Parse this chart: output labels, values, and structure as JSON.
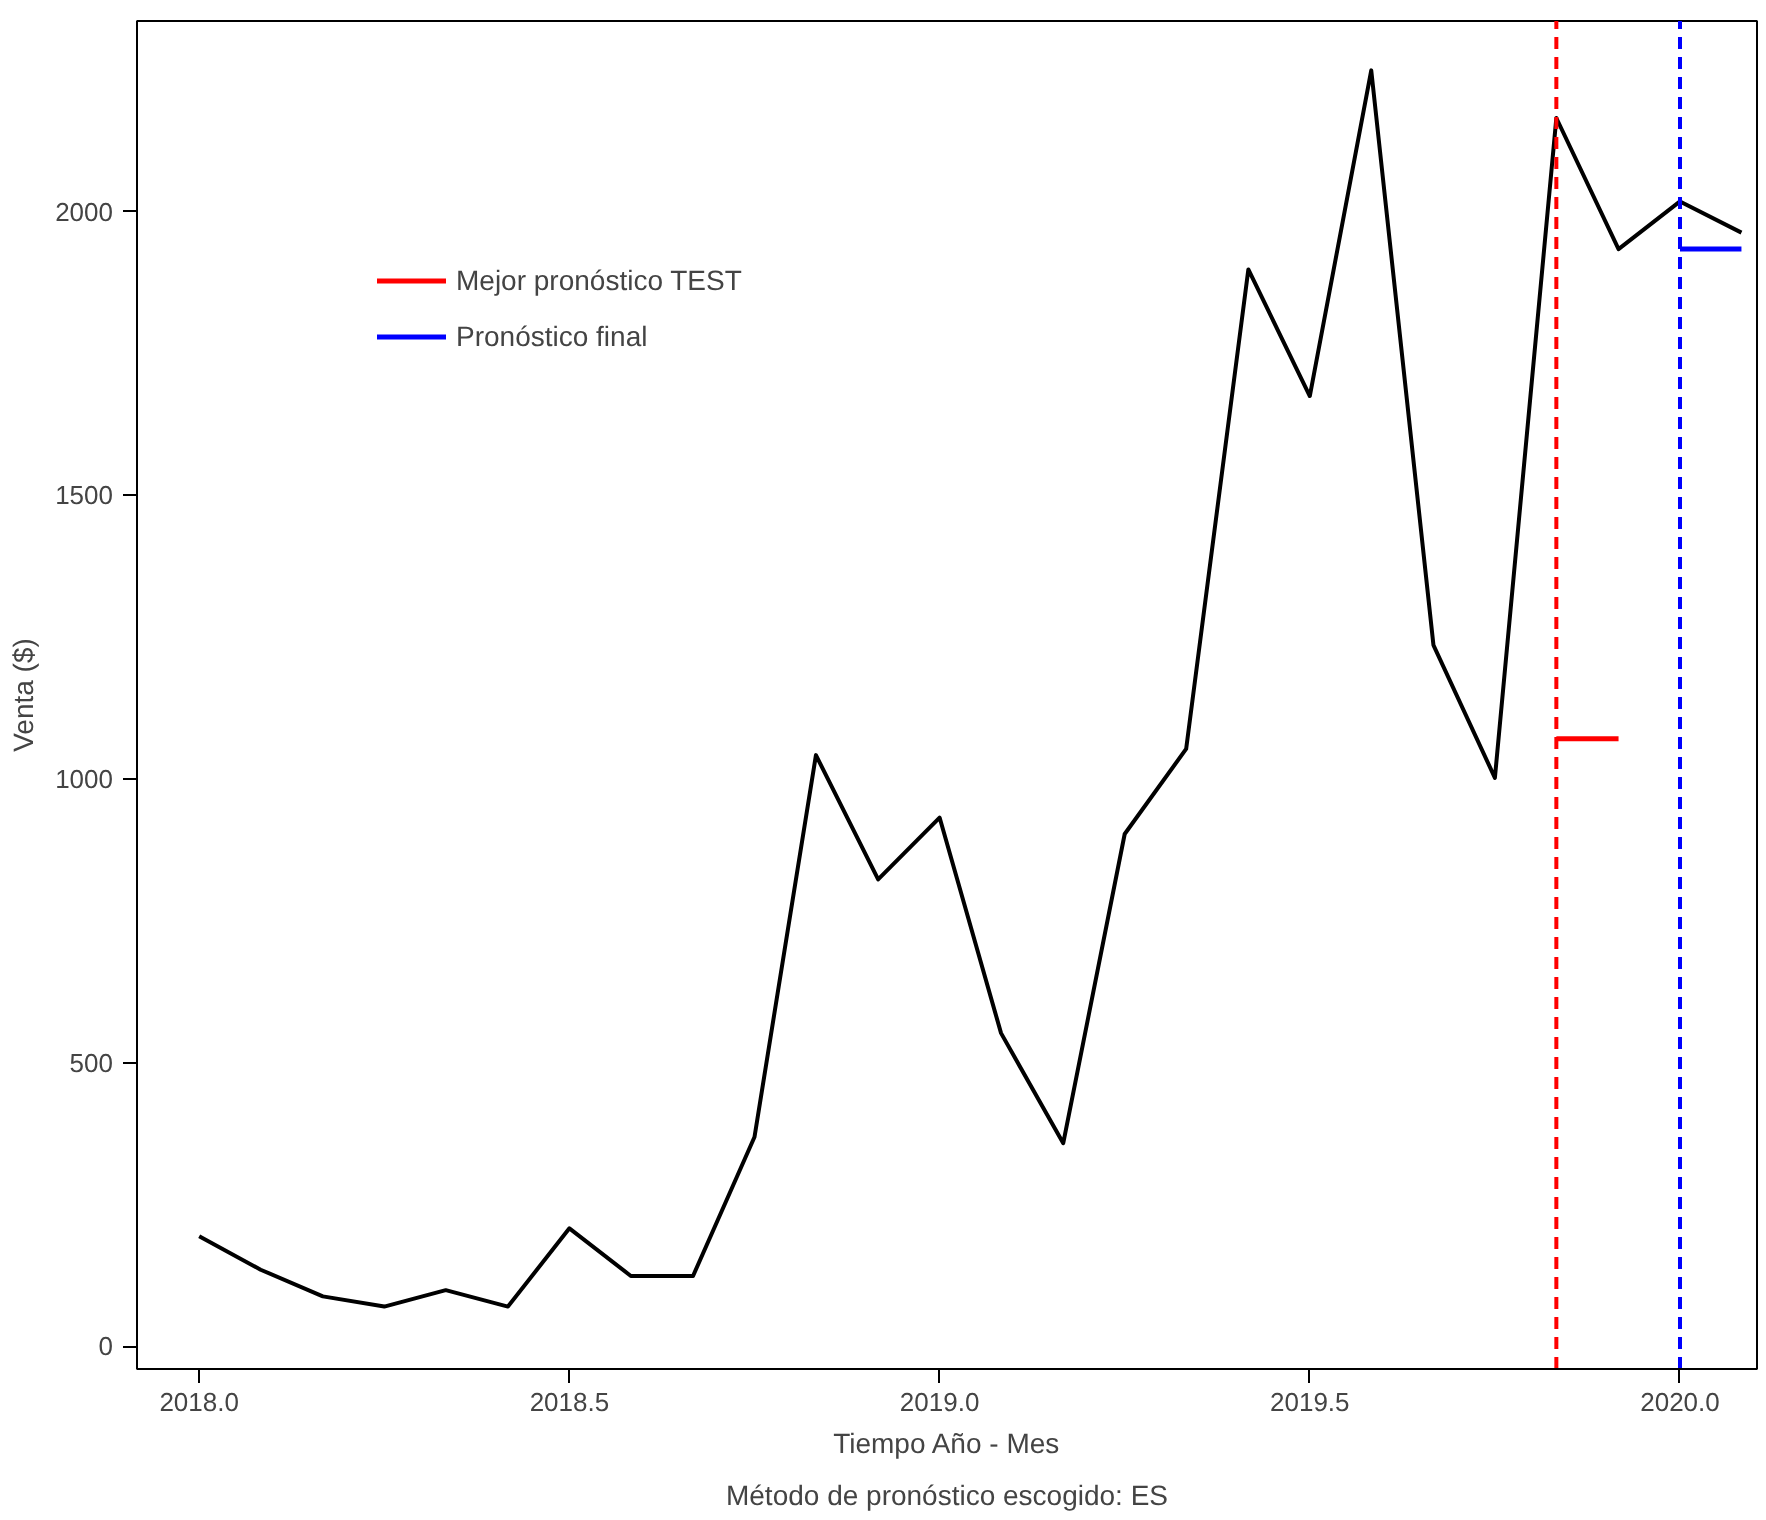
{
  "chart_data": {
    "type": "line",
    "xlabel": "Tiempo Año - Mes",
    "ylabel": "Venta ($)",
    "annotations": [
      "Método de pronóstico escogido: ES"
    ],
    "xlim": [
      2017.916,
      2020.104
    ],
    "ylim": [
      -40,
      2336
    ],
    "xticks": [
      {
        "value": 2018,
        "label": "2018.0"
      },
      {
        "value": 2018.5,
        "label": "2018.5"
      },
      {
        "value": 2019,
        "label": "2019.0"
      },
      {
        "value": 2019.5,
        "label": "2019.5"
      },
      {
        "value": 2020,
        "label": "2020.0"
      }
    ],
    "yticks": [
      0,
      500,
      1000,
      1500,
      2000
    ],
    "grid": false,
    "legend": "top left",
    "line_style": "solid",
    "series": [
      {
        "color": "#000000",
        "x": [
          2018.0,
          2018.083,
          2018.167,
          2018.25,
          2018.333,
          2018.417,
          2018.5,
          2018.583,
          2018.667,
          2018.75,
          2018.833,
          2018.917,
          2019.0,
          2019.083,
          2019.167,
          2019.25,
          2019.333,
          2019.417,
          2019.5,
          2019.583,
          2019.667,
          2019.75,
          2019.833,
          2019.917,
          2020.0,
          2020.083
        ],
        "values": [
          194,
          135,
          88,
          70,
          99,
          70,
          208,
          124,
          124,
          369,
          1042,
          823,
          932,
          552,
          358,
          903,
          1053,
          1898,
          1675,
          2249,
          1236,
          1002,
          2165,
          1934,
          2018,
          1963
        ]
      },
      {
        "name": "Mejor pronóstico TEST",
        "color": "#ff0000",
        "x": [
          2019.833,
          2019.917
        ],
        "values": [
          1071,
          1071
        ]
      },
      {
        "name": "Pronóstico final",
        "color": "#0000ff",
        "x": [
          2020.0,
          2020.083
        ],
        "values": [
          1934,
          1934
        ]
      }
    ],
    "ref_lines": [
      {
        "axis": "x",
        "value": 2019.833,
        "color": "#ff0000",
        "line_style": "dashed"
      },
      {
        "axis": "x",
        "value": 2020.0,
        "color": "#0000ff",
        "line_style": "dashed"
      }
    ]
  }
}
